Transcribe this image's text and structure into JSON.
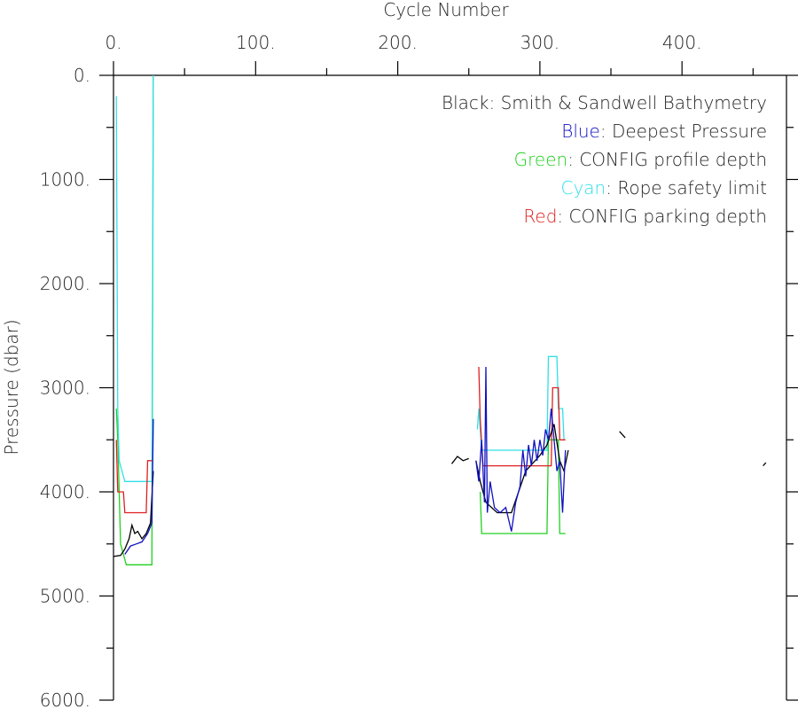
{
  "chart_data": {
    "type": "line",
    "xlabel": "Cycle Number",
    "ylabel": "Pressure (dbar)",
    "xlim": [
      0,
      473.5
    ],
    "ylim": [
      0,
      6000
    ],
    "y_inverted": true,
    "x_axis_position": "top",
    "xticks": [
      {
        "value": 0,
        "label": "0."
      },
      {
        "value": 100,
        "label": "100."
      },
      {
        "value": 200,
        "label": "200."
      },
      {
        "value": 300,
        "label": "300."
      },
      {
        "value": 400,
        "label": "400."
      }
    ],
    "xminor_ticks": [
      50,
      150,
      250,
      350,
      450
    ],
    "yticks": [
      {
        "value": 0,
        "label": "0."
      },
      {
        "value": 1000,
        "label": "1000."
      },
      {
        "value": 2000,
        "label": "2000."
      },
      {
        "value": 3000,
        "label": "3000."
      },
      {
        "value": 4000,
        "label": "4000."
      },
      {
        "value": 5000,
        "label": "5000."
      },
      {
        "value": 6000,
        "label": "6000."
      }
    ],
    "yminor_ticks": [
      500,
      1500,
      2500,
      3500,
      4500,
      5500
    ],
    "legend_separator": ": ",
    "legend": "top-right",
    "series": [
      {
        "color_label": "Black",
        "name": "Smith & Sandwell Bathymetry",
        "color": "#000000",
        "x": [
          0,
          5,
          8,
          11,
          13,
          15,
          17,
          20,
          23,
          26,
          28,
          null,
          238,
          242,
          246,
          250,
          null,
          255,
          258,
          262,
          270,
          280,
          290,
          300,
          305,
          310,
          314,
          317,
          320,
          null,
          356,
          360,
          null,
          457,
          459
        ],
        "values": [
          4620,
          4610,
          4550,
          4450,
          4320,
          4400,
          4380,
          4450,
          4400,
          4300,
          3800,
          null,
          3730,
          3660,
          3700,
          3680,
          null,
          3700,
          3900,
          4100,
          4200,
          4200,
          3800,
          3650,
          3550,
          3350,
          3700,
          3800,
          3600,
          null,
          3420,
          3480,
          null,
          3750,
          3720
        ]
      },
      {
        "color_label": "Blue",
        "name": "Deepest Pressure",
        "color": "#1010c0",
        "x": [
          8,
          12,
          16,
          20,
          24,
          27,
          28,
          null,
          255,
          257,
          259,
          261,
          262,
          263,
          265,
          268,
          272,
          276,
          280,
          283,
          286,
          288,
          290,
          292,
          294,
          296,
          298,
          300,
          302,
          304,
          306,
          308,
          310,
          312,
          314,
          316,
          318
        ],
        "values": [
          4600,
          4520,
          4500,
          4480,
          4400,
          4300,
          3300,
          null,
          3700,
          3900,
          3500,
          4100,
          2800,
          4200,
          3900,
          4150,
          4200,
          4150,
          4380,
          4100,
          3950,
          3600,
          3850,
          3550,
          3750,
          3500,
          3700,
          3500,
          3650,
          3400,
          3500,
          3200,
          3500,
          3800,
          3700,
          4200,
          3600
        ]
      },
      {
        "color_label": "Green",
        "name": "CONFIG profile depth",
        "color": "#20d020",
        "x": [
          2,
          3,
          5,
          9,
          27,
          28,
          null,
          258,
          259,
          305,
          306,
          313,
          314,
          318
        ],
        "values": [
          3200,
          3500,
          4500,
          4700,
          4700,
          0,
          null,
          4000,
          4400,
          4400,
          3500,
          3500,
          4400,
          4400
        ]
      },
      {
        "color_label": "Cyan",
        "name": "Rope safety limit",
        "color": "#30e0e8",
        "x": [
          2,
          3,
          4,
          6,
          8,
          27,
          28,
          null,
          256,
          257,
          259,
          305,
          306,
          312,
          313,
          316,
          317
        ],
        "values": [
          200,
          3200,
          3700,
          3800,
          3900,
          3900,
          0,
          null,
          3400,
          3200,
          3600,
          3600,
          2700,
          2700,
          3200,
          3200,
          3500
        ]
      },
      {
        "color_label": "Red",
        "name": "CONFIG parking depth",
        "color": "#e02020",
        "x": [
          2,
          3,
          7,
          8,
          23,
          24,
          27,
          null,
          257,
          258,
          260,
          308,
          309,
          313,
          314,
          318
        ],
        "values": [
          3500,
          4000,
          4000,
          4200,
          4200,
          3700,
          3700,
          null,
          2800,
          3300,
          3750,
          3750,
          3000,
          3000,
          3500,
          3500
        ]
      }
    ]
  }
}
